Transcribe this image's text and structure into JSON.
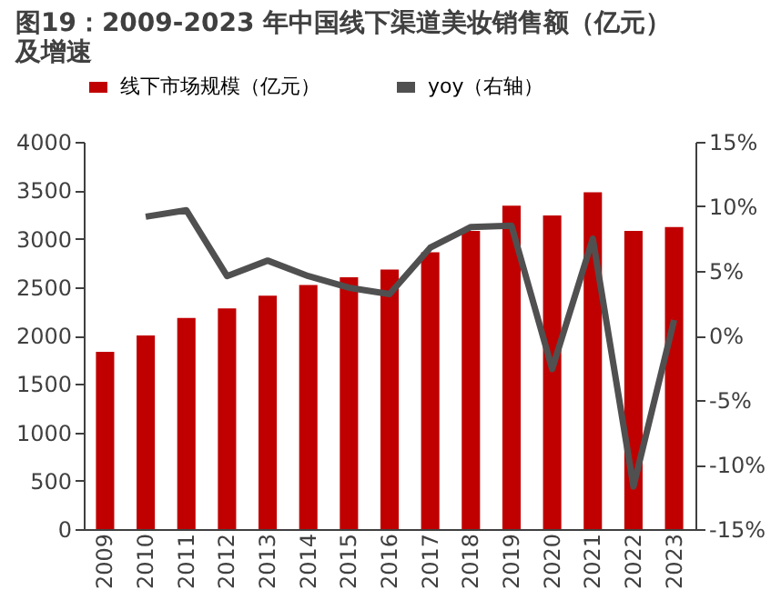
{
  "chart_data": {
    "type": "bar",
    "title": [
      "图19：2009-2023 年中国线下渠道美妆销售额（亿元）",
      "及增速"
    ],
    "categories": [
      "2009",
      "2010",
      "2011",
      "2012",
      "2013",
      "2014",
      "2015",
      "2016",
      "2017",
      "2018",
      "2019",
      "2020",
      "2021",
      "2022",
      "2023"
    ],
    "series": [
      {
        "name": "线下市场规模（亿元）",
        "color": "#c00000",
        "values": [
          1830,
          2000,
          2180,
          2280,
          2410,
          2520,
          2600,
          2680,
          2860,
          3080,
          3340,
          3240,
          3480,
          3080,
          3120
        ]
      },
      {
        "name": "yoy（右轴）",
        "color": "#505050",
        "type": "line",
        "axis": "y2",
        "values": [
          null,
          9.2,
          9.7,
          4.6,
          5.8,
          4.6,
          3.7,
          3.2,
          6.8,
          8.4,
          8.5,
          -2.6,
          7.5,
          -11.7,
          1.2
        ]
      }
    ],
    "ylim": [
      0,
      4000
    ],
    "yticks": [
      0,
      500,
      1000,
      1500,
      2000,
      2500,
      3000,
      3500,
      4000
    ],
    "y2lim": [
      -15,
      15
    ],
    "y2ticks": [
      {
        "value": -15,
        "label": "-15%"
      },
      {
        "value": -10,
        "label": "-10%"
      },
      {
        "value": -5,
        "label": "-5%"
      },
      {
        "value": 0,
        "label": "0%"
      },
      {
        "value": 5,
        "label": "5%"
      },
      {
        "value": 10,
        "label": "10%"
      },
      {
        "value": 15,
        "label": "15%"
      }
    ],
    "grid": false,
    "legend": "top",
    "marker": "none",
    "line_style": "solid"
  }
}
